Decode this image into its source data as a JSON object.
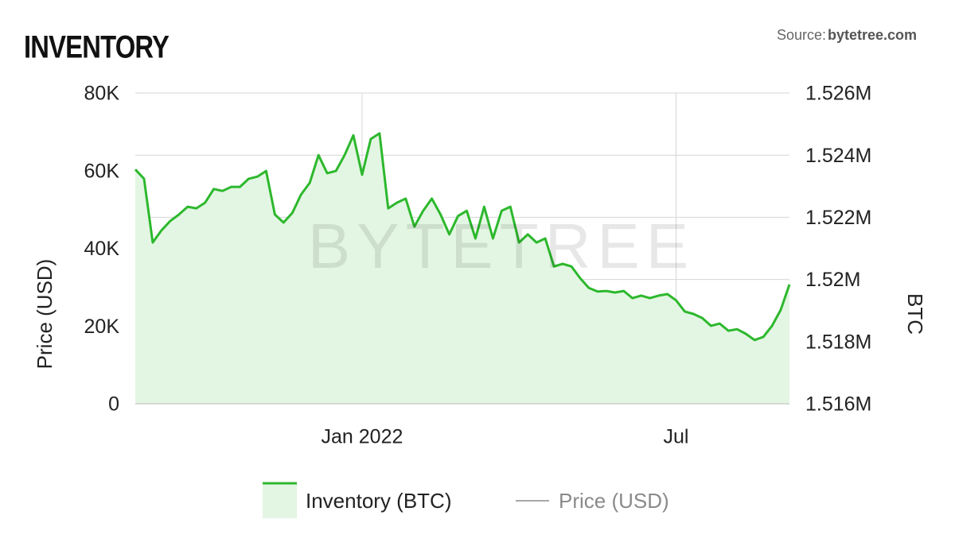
{
  "chart_data": {
    "type": "area",
    "title": "INVENTORY",
    "source_label": "Source:",
    "source": "bytetree.com",
    "watermark": "BYTETREE",
    "ylabel": "Price (USD)",
    "y2label": "BTC",
    "categories": [
      null,
      null,
      null,
      null,
      null,
      null,
      null,
      null,
      null,
      null,
      null,
      null,
      null,
      null,
      null,
      null,
      null,
      null,
      null,
      null,
      null,
      null,
      null,
      null,
      null,
      null,
      "Jan 2022",
      null,
      null,
      null,
      null,
      null,
      null,
      null,
      null,
      null,
      null,
      null,
      null,
      null,
      null,
      null,
      null,
      null,
      null,
      null,
      null,
      null,
      null,
      null,
      null,
      null,
      null,
      null,
      null,
      null,
      null,
      null,
      null,
      null,
      null,
      null,
      "Jul",
      null,
      null,
      null,
      null,
      null,
      null,
      null,
      null,
      null,
      null,
      null,
      null,
      null
    ],
    "series": [
      {
        "name": "Inventory (BTC)",
        "color": "#2db82d",
        "fill": "#e3f6e3",
        "axis": "y2",
        "values": [
          1523540,
          1523240,
          1521190,
          1521580,
          1521880,
          1522090,
          1522340,
          1522290,
          1522470,
          1522910,
          1522850,
          1522980,
          1522980,
          1523240,
          1523310,
          1523490,
          1522090,
          1521830,
          1522140,
          1522730,
          1523110,
          1524000,
          1523420,
          1523490,
          1524000,
          1524640,
          1523370,
          1524520,
          1524700,
          1522290,
          1522470,
          1522600,
          1521700,
          1522210,
          1522600,
          1522090,
          1521450,
          1522040,
          1522210,
          1521320,
          1522340,
          1521320,
          1522210,
          1522340,
          1521190,
          1521450,
          1521190,
          1521320,
          1520420,
          1520500,
          1520420,
          1520040,
          1519730,
          1519610,
          1519630,
          1519580,
          1519630,
          1519400,
          1519480,
          1519400,
          1519480,
          1519530,
          1519330,
          1518970,
          1518890,
          1518760,
          1518510,
          1518580,
          1518350,
          1518400,
          1518250,
          1518050,
          1518150,
          1518510,
          1519020,
          1519840
        ]
      }
    ],
    "hidden_series": [
      {
        "name": "Price (USD)",
        "color": "#8a8a8a"
      }
    ],
    "ylim": [
      0,
      80000
    ],
    "yticks": [
      0,
      {
        "value": 20000,
        "label": "20K"
      },
      {
        "value": 40000,
        "label": "40K"
      },
      {
        "value": 60000,
        "label": "60K"
      },
      {
        "value": 80000,
        "label": "80K"
      }
    ],
    "y2lim": [
      1516000,
      1526000
    ],
    "y2ticks": [
      {
        "value": 1516000,
        "label": "1.516M"
      },
      {
        "value": 1518000,
        "label": "1.518M"
      },
      {
        "value": 1520000,
        "label": "1.52M"
      },
      {
        "value": 1522000,
        "label": "1.522M"
      },
      {
        "value": 1524000,
        "label": "1.524M"
      },
      {
        "value": 1526000,
        "label": "1.526M"
      }
    ],
    "grid": true
  }
}
